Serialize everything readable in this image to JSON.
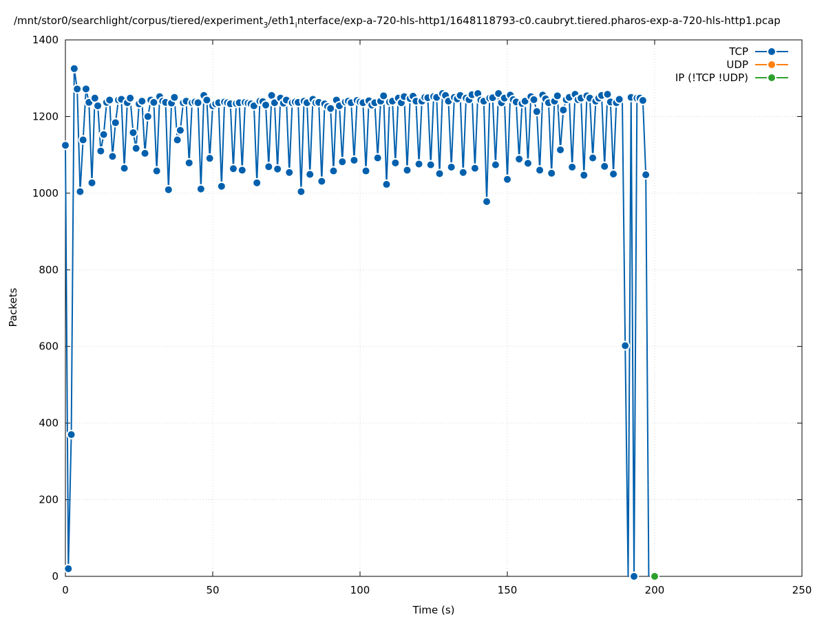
{
  "chart_data": {
    "type": "line",
    "title": "/mnt/stor0/searchlight/corpus/tiered/experiment_3/eth1_interface/exp-a-720-hls-http1/1648118793-c0.caubryt.tiered.pharos-exp-a-720-hls-http1.pcap",
    "title_parts": {
      "a": "/mnt/stor0/searchlight/corpus/tiered/experiment",
      "sub1": "3",
      "b": "/eth1",
      "sub2": "i",
      "c": "nterface/exp-a-720-hls-http1/1648118793-c0.caubryt.tiered.pharos-exp-a-720-hls-http1.pcap"
    },
    "xlabel": "Time (s)",
    "ylabel": "Packets",
    "xlim": [
      0,
      250
    ],
    "ylim": [
      0,
      1400
    ],
    "xticks": [
      0,
      50,
      100,
      150,
      200,
      250
    ],
    "yticks": [
      0,
      200,
      400,
      600,
      800,
      1000,
      1200,
      1400
    ],
    "grid": true,
    "legend_position": "top-right",
    "series": [
      {
        "name": "TCP",
        "color": "#0060ad",
        "x": [
          0,
          1,
          2,
          3,
          4,
          5,
          6,
          7,
          8,
          9,
          10,
          11,
          12,
          13,
          14,
          15,
          16,
          17,
          18,
          19,
          20,
          21,
          22,
          23,
          24,
          25,
          26,
          27,
          28,
          29,
          30,
          31,
          32,
          33,
          34,
          35,
          36,
          37,
          38,
          39,
          40,
          41,
          42,
          43,
          44,
          45,
          46,
          47,
          48,
          49,
          50,
          51,
          52,
          53,
          54,
          55,
          56,
          57,
          58,
          59,
          60,
          61,
          62,
          63,
          64,
          65,
          66,
          67,
          68,
          69,
          70,
          71,
          72,
          73,
          74,
          75,
          76,
          77,
          78,
          79,
          80,
          81,
          82,
          83,
          84,
          85,
          86,
          87,
          88,
          89,
          90,
          91,
          92,
          93,
          94,
          95,
          96,
          97,
          98,
          99,
          100,
          101,
          102,
          103,
          104,
          105,
          106,
          107,
          108,
          109,
          110,
          111,
          112,
          113,
          114,
          115,
          116,
          117,
          118,
          119,
          120,
          121,
          122,
          123,
          124,
          125,
          126,
          127,
          128,
          129,
          130,
          131,
          132,
          133,
          134,
          135,
          136,
          137,
          138,
          139,
          140,
          141,
          142,
          143,
          144,
          145,
          146,
          147,
          148,
          149,
          150,
          151,
          152,
          153,
          154,
          155,
          156,
          157,
          158,
          159,
          160,
          161,
          162,
          163,
          164,
          165,
          166,
          167,
          168,
          169,
          170,
          171,
          172,
          173,
          174,
          175,
          176,
          177,
          178,
          179,
          180,
          181,
          182,
          183,
          184,
          185,
          186,
          187,
          188,
          189,
          190,
          191,
          192,
          193,
          194,
          195,
          196,
          197,
          198
        ],
        "y": [
          1125,
          20,
          370,
          1325,
          1272,
          1004,
          1139,
          1272,
          1237,
          1027,
          1248,
          1228,
          1110,
          1153,
          1237,
          1243,
          1096,
          1184,
          1243,
          1245,
          1065,
          1236,
          1248,
          1158,
          1117,
          1233,
          1240,
          1104,
          1200,
          1243,
          1237,
          1058,
          1252,
          1240,
          1237,
          1009,
          1235,
          1250,
          1139,
          1164,
          1236,
          1240,
          1079,
          1236,
          1238,
          1236,
          1011,
          1255,
          1243,
          1091,
          1228,
          1233,
          1236,
          1018,
          1238,
          1236,
          1233,
          1064,
          1234,
          1236,
          1060,
          1237,
          1235,
          1233,
          1228,
          1027,
          1240,
          1239,
          1230,
          1069,
          1255,
          1236,
          1063,
          1248,
          1235,
          1243,
          1054,
          1236,
          1238,
          1237,
          1004,
          1240,
          1236,
          1049,
          1245,
          1236,
          1237,
          1031,
          1233,
          1226,
          1221,
          1058,
          1243,
          1228,
          1082,
          1238,
          1240,
          1236,
          1086,
          1242,
          1238,
          1236,
          1058,
          1241,
          1230,
          1236,
          1092,
          1240,
          1254,
          1023,
          1238,
          1240,
          1079,
          1248,
          1236,
          1252,
          1060,
          1247,
          1253,
          1240,
          1076,
          1240,
          1250,
          1249,
          1074,
          1252,
          1250,
          1051,
          1260,
          1255,
          1240,
          1068,
          1250,
          1246,
          1255,
          1054,
          1248,
          1244,
          1257,
          1065,
          1260,
          1243,
          1240,
          978,
          1248,
          1249,
          1074,
          1260,
          1236,
          1248,
          1036,
          1256,
          1244,
          1238,
          1089,
          1234,
          1240,
          1078,
          1252,
          1244,
          1213,
          1060,
          1256,
          1246,
          1236,
          1052,
          1240,
          1254,
          1113,
          1217,
          1244,
          1250,
          1068,
          1258,
          1244,
          1248,
          1047,
          1254,
          1248,
          1092,
          1240,
          1248,
          1255,
          1070,
          1258,
          1238,
          1050,
          1236,
          1245,
          1253,
          602,
          0,
          1250,
          0,
          1248,
          1248,
          1242,
          1048,
          0
        ],
        "markers_hidden": [
          189,
          191,
          198
        ]
      },
      {
        "name": "UDP",
        "color": "#ff7f0e",
        "x": [],
        "y": []
      },
      {
        "name": "IP (!TCP  !UDP)",
        "color": "#2ca02c",
        "x": [
          200
        ],
        "y": [
          0
        ]
      }
    ]
  }
}
